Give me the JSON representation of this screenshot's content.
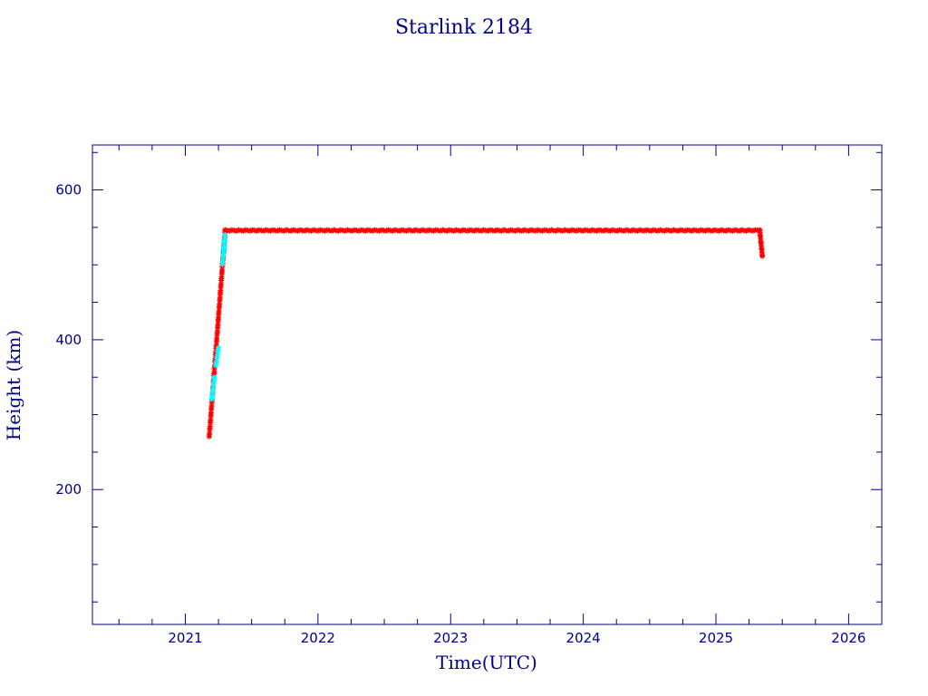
{
  "chart_data": {
    "type": "scatter",
    "title": "Starlink 2184",
    "xlabel": "Time(UTC)",
    "ylabel": "Height (km)",
    "xlim": [
      2020.3,
      2026.25
    ],
    "ylim": [
      20,
      660
    ],
    "x_ticks": [
      2021,
      2022,
      2023,
      2024,
      2025,
      2026
    ],
    "x_tick_labels": [
      "2021",
      "2022",
      "2023",
      "2024",
      "2025",
      "2026"
    ],
    "y_ticks": [
      200,
      400,
      600
    ],
    "y_tick_labels": [
      "200",
      "400",
      "600"
    ],
    "grid": false,
    "colors": {
      "axis": "#00008b",
      "primary": "#ff0000",
      "secondary": "#00ffff"
    },
    "series": [
      {
        "marker": "asterisk",
        "color": "#ff0000",
        "segments": [
          {
            "x": [
              2021.18,
              2021.3
            ],
            "y": [
              270,
              545
            ]
          },
          {
            "x": [
              2021.3,
              2025.33
            ],
            "y": [
              546,
              546
            ]
          },
          {
            "x": [
              2025.33,
              2025.35
            ],
            "y": [
              546,
              511
            ]
          }
        ]
      },
      {
        "marker": "asterisk",
        "color": "#00ffff",
        "segments": [
          {
            "x": [
              2021.2,
              2021.22
            ],
            "y": [
              320,
              350
            ]
          },
          {
            "x": [
              2021.23,
              2021.25
            ],
            "y": [
              365,
              390
            ]
          },
          {
            "x": [
              2021.28,
              2021.3
            ],
            "y": [
              500,
              540
            ]
          }
        ]
      }
    ]
  }
}
